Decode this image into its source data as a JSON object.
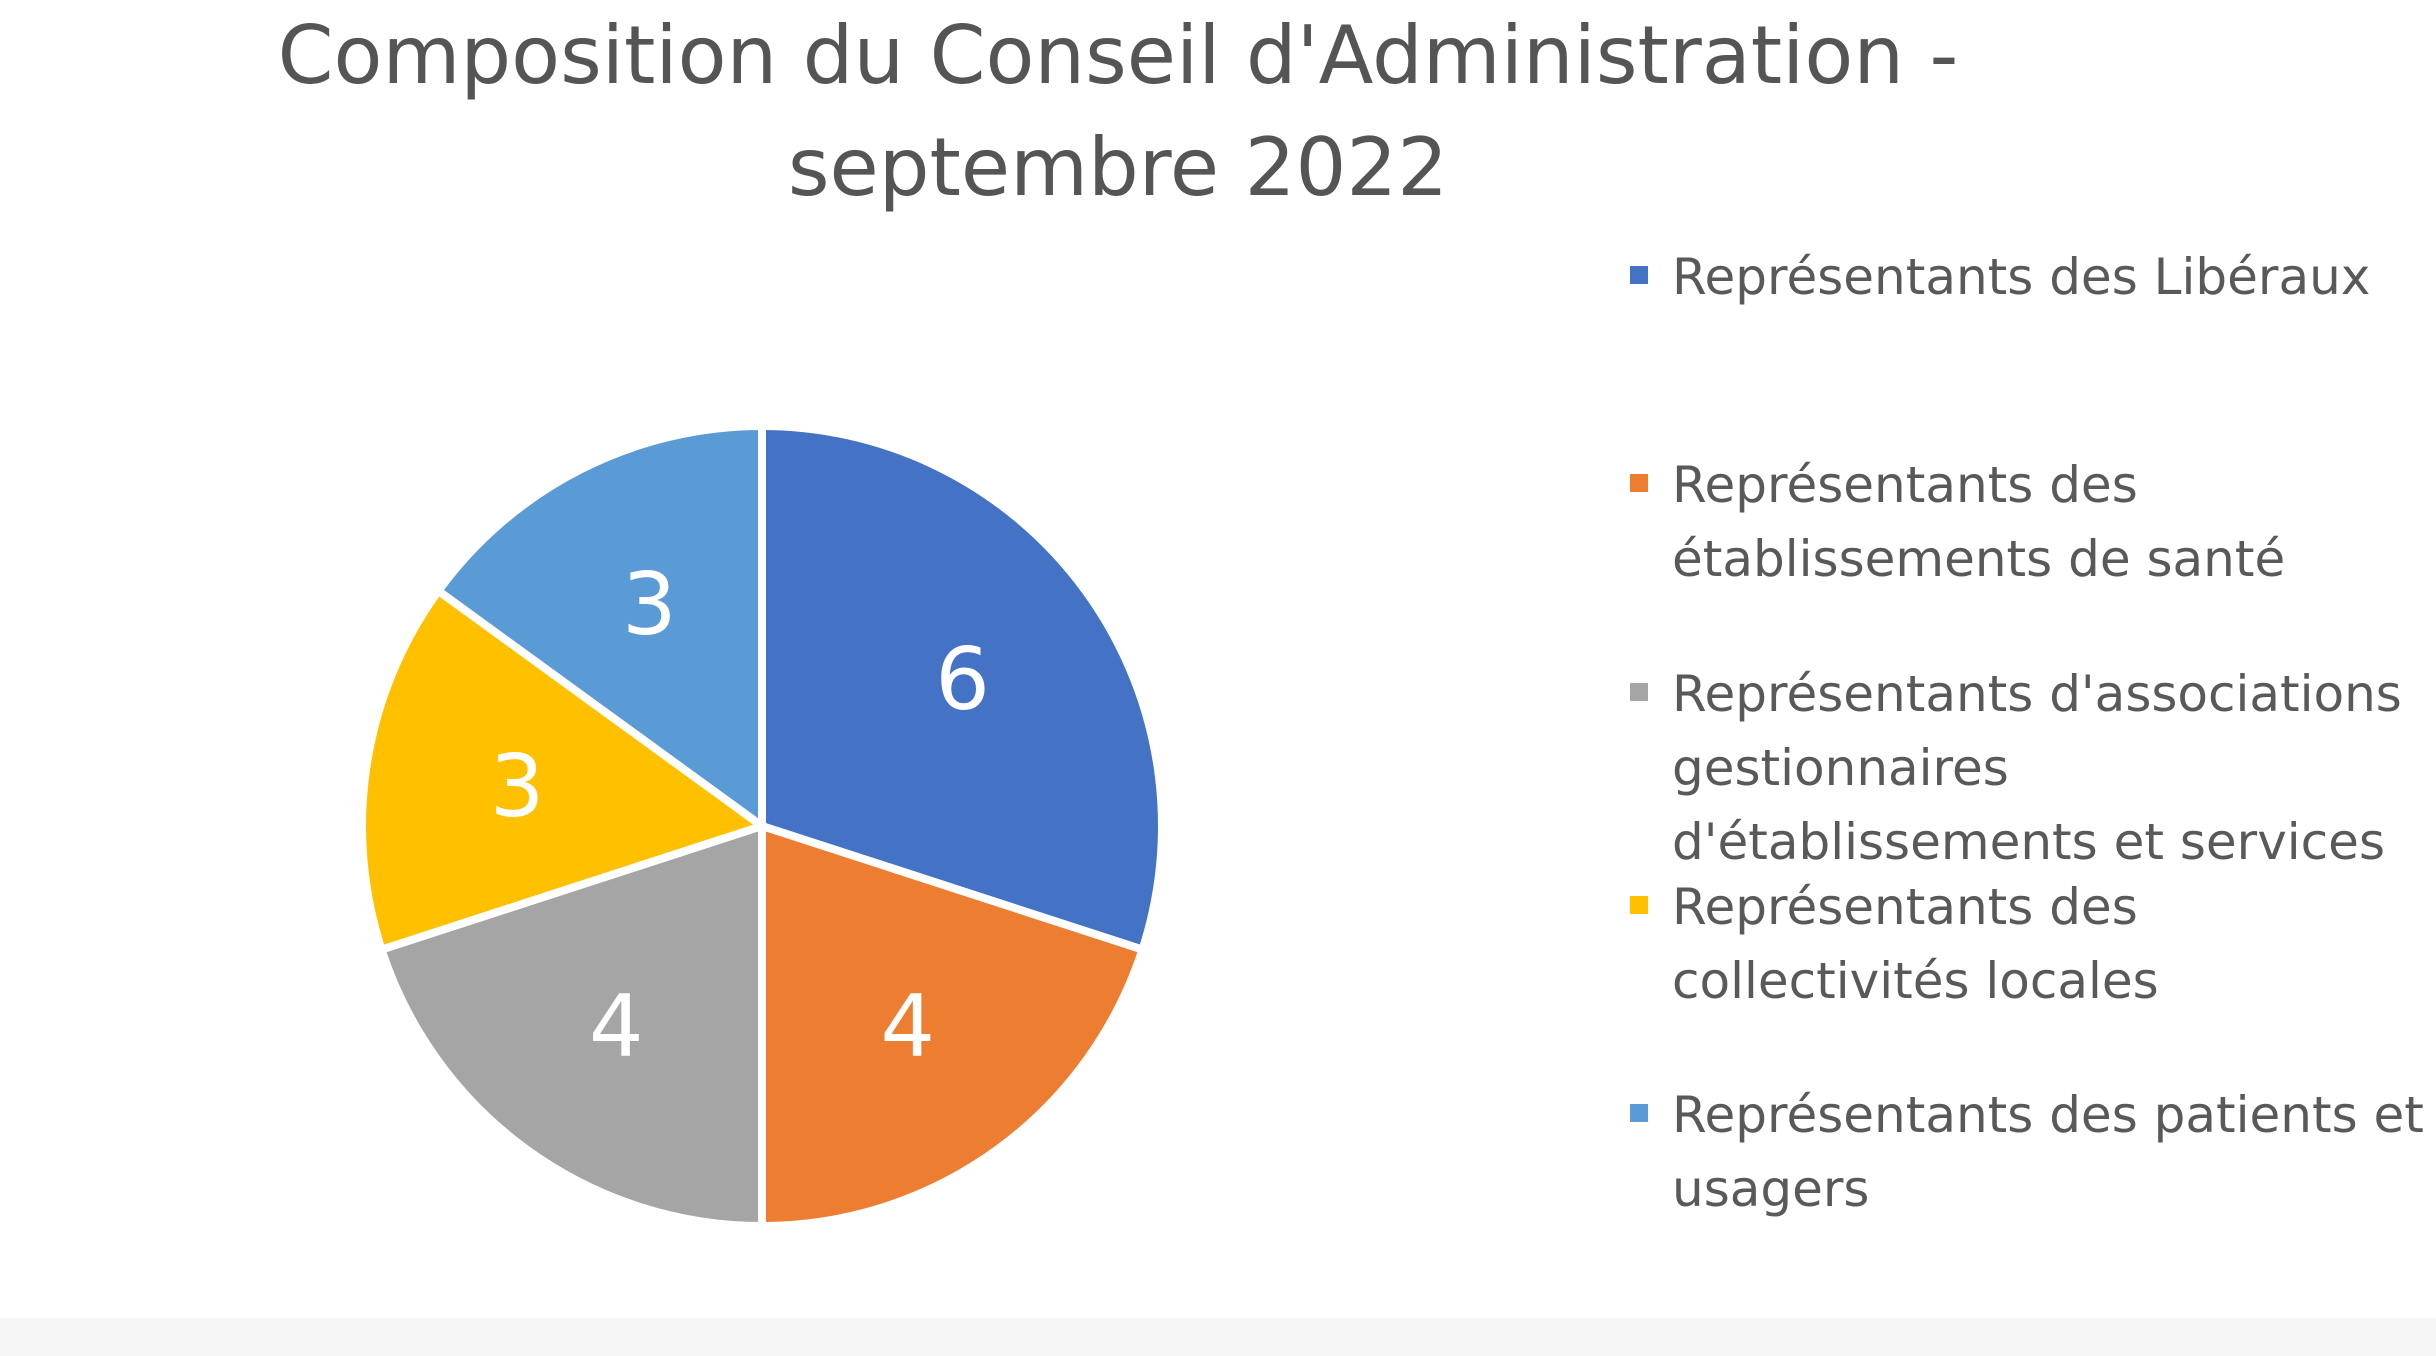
{
  "chart_data": {
    "type": "pie",
    "title": "Composition du Conseil d'Administration - septembre 2022",
    "title_lines": [
      "Composition du Conseil d'Administration -",
      "septembre 2022"
    ],
    "categories": [
      "Représentants des Libéraux",
      "Représentants des établissements de santé",
      "Représentants d'associations gestionnaires d'établissements et services",
      "Représentants des collectivités locales",
      "Représentants des patients et usagers"
    ],
    "values": [
      6,
      4,
      4,
      3,
      3
    ],
    "data_labels": [
      "6",
      "4",
      "4",
      "3",
      "3"
    ],
    "colors": [
      "#4472C4",
      "#ED7D31",
      "#A5A5A5",
      "#FFC000",
      "#5B9BD5"
    ],
    "legend_placement": "right",
    "start_angle_deg": 0,
    "direction": "clockwise"
  },
  "legend": {
    "items": [
      {
        "label": "Représentants des Libéraux",
        "color": "#4472C4"
      },
      {
        "label": "Représentants des\nétablissements de santé",
        "color": "#ED7D31"
      },
      {
        "label": "Représentants d'associations\ngestionnaires\nd'établissements et services",
        "color": "#A5A5A5"
      },
      {
        "label": "Représentants des\ncollectivités locales",
        "color": "#FFC000"
      },
      {
        "label": "Représentants des patients et\nusagers",
        "color": "#5B9BD5"
      }
    ]
  }
}
